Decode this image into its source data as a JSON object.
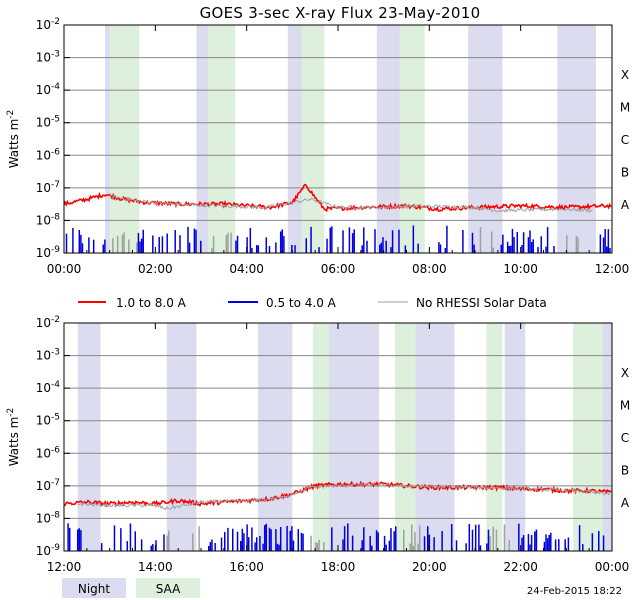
{
  "chart_data": {
    "type": "line",
    "title": "GOES 3-sec X-ray Flux   23-May-2010",
    "ylabel": "Watts m",
    "ylabel_superscript": "-2",
    "y_scale": "log",
    "ylim_exponents": [
      -9,
      -2
    ],
    "y_tick_exponents": [
      -9,
      -8,
      -7,
      -6,
      -5,
      -4,
      -3,
      -2
    ],
    "y_tick_base": "10",
    "flare_classes": [
      {
        "label": "A",
        "exponent": -8
      },
      {
        "label": "B",
        "exponent": -7
      },
      {
        "label": "C",
        "exponent": -6
      },
      {
        "label": "M",
        "exponent": -5
      },
      {
        "label": "X",
        "exponent": -4
      }
    ],
    "legend": [
      {
        "label": "1.0 to 8.0 A",
        "color": "#ff0000"
      },
      {
        "label": "0.5 to 4.0 A",
        "color": "#0000dd"
      },
      {
        "label": "No RHESSI Solar Data",
        "color": "#a0a0a0"
      }
    ],
    "key": [
      {
        "label": "Night",
        "color": "#dcdcf0"
      },
      {
        "label": "SAA",
        "color": "#dcf0dc"
      }
    ],
    "footer": "24-Feb-2015 18:22",
    "panels": [
      {
        "name": "top",
        "x_tick_labels": [
          "00:00",
          "02:00",
          "04:00",
          "06:00",
          "08:00",
          "10:00",
          "12:00"
        ],
        "x_range_hours": [
          0,
          12
        ],
        "night": [
          [
            0.9,
            1.6
          ],
          [
            2.9,
            3.5
          ],
          [
            4.9,
            5.5
          ],
          [
            6.85,
            7.45
          ],
          [
            8.85,
            9.6
          ],
          [
            10.8,
            11.65
          ]
        ],
        "saa": [
          [
            1.0,
            1.65
          ],
          [
            3.15,
            3.75
          ],
          [
            5.2,
            5.7
          ],
          [
            7.35,
            7.9
          ]
        ],
        "series": [
          {
            "name": "1.0 to 8.0 A",
            "values": [
              [
                0,
                -7.5
              ],
              [
                0.5,
                -7.35
              ],
              [
                0.9,
                -7.2
              ],
              [
                1.3,
                -7.35
              ],
              [
                1.8,
                -7.45
              ],
              [
                2.5,
                -7.5
              ],
              [
                3.5,
                -7.5
              ],
              [
                4.5,
                -7.6
              ],
              [
                5.0,
                -7.45
              ],
              [
                5.3,
                -6.9
              ],
              [
                5.5,
                -7.3
              ],
              [
                5.7,
                -7.65
              ],
              [
                6.5,
                -7.6
              ],
              [
                7.5,
                -7.55
              ],
              [
                8.2,
                -7.65
              ],
              [
                9,
                -7.6
              ],
              [
                10,
                -7.55
              ],
              [
                11,
                -7.6
              ],
              [
                12,
                -7.55
              ]
            ]
          },
          {
            "name": "No RHESSI Solar Data",
            "values": [
              [
                1.0,
                -7.25
              ],
              [
                1.6,
                -7.4
              ],
              [
                2.4,
                -7.5
              ],
              [
                3.4,
                -7.55
              ],
              [
                4.4,
                -7.6
              ],
              [
                5.4,
                -7.35
              ],
              [
                6.0,
                -7.6
              ],
              [
                7.0,
                -7.6
              ],
              [
                7.6,
                -7.55
              ],
              [
                9.0,
                -7.6
              ],
              [
                9.5,
                -7.7
              ],
              [
                10.9,
                -7.65
              ],
              [
                11.6,
                -7.7
              ]
            ]
          }
        ]
      },
      {
        "name": "bottom",
        "x_tick_labels": [
          "12:00",
          "14:00",
          "16:00",
          "18:00",
          "20:00",
          "22:00",
          "00:00"
        ],
        "x_range_hours": [
          12,
          24
        ],
        "night": [
          [
            12.3,
            12.8
          ],
          [
            14.25,
            14.9
          ],
          [
            16.25,
            17.0
          ],
          [
            17.75,
            18.9
          ],
          [
            19.4,
            20.55
          ],
          [
            21.65,
            22.1
          ],
          [
            23.6,
            24.0
          ]
        ],
        "saa": [
          [
            17.45,
            17.8
          ],
          [
            19.25,
            19.7
          ],
          [
            21.25,
            21.6
          ],
          [
            23.15,
            23.8
          ]
        ],
        "series": [
          {
            "name": "1.0 to 8.0 A",
            "values": [
              [
                12,
                -7.55
              ],
              [
                12.5,
                -7.5
              ],
              [
                13.0,
                -7.55
              ],
              [
                13.5,
                -7.5
              ],
              [
                14.0,
                -7.55
              ],
              [
                14.5,
                -7.45
              ],
              [
                15.0,
                -7.55
              ],
              [
                15.5,
                -7.5
              ],
              [
                16.0,
                -7.45
              ],
              [
                16.5,
                -7.4
              ],
              [
                17.0,
                -7.25
              ],
              [
                17.5,
                -7.0
              ],
              [
                18.0,
                -6.95
              ],
              [
                18.5,
                -6.95
              ],
              [
                19.0,
                -6.95
              ],
              [
                19.5,
                -7.0
              ],
              [
                20.0,
                -7.05
              ],
              [
                20.5,
                -7.05
              ],
              [
                21.0,
                -7.05
              ],
              [
                21.5,
                -7.05
              ],
              [
                22.0,
                -7.1
              ],
              [
                22.5,
                -7.1
              ],
              [
                23.0,
                -7.15
              ],
              [
                23.5,
                -7.15
              ],
              [
                24,
                -7.2
              ]
            ]
          },
          {
            "name": "No RHESSI Solar Data",
            "values": [
              [
                12.3,
                -7.55
              ],
              [
                13.0,
                -7.6
              ],
              [
                14.0,
                -7.6
              ],
              [
                14.25,
                -7.7
              ],
              [
                15.0,
                -7.5
              ],
              [
                16.2,
                -7.45
              ],
              [
                16.8,
                -7.35
              ],
              [
                17.4,
                -7.05
              ],
              [
                18.5,
                -6.95
              ],
              [
                19.3,
                -7.0
              ],
              [
                21.3,
                -7.05
              ],
              [
                23.2,
                -7.15
              ],
              [
                24,
                -7.25
              ]
            ]
          }
        ]
      }
    ]
  }
}
